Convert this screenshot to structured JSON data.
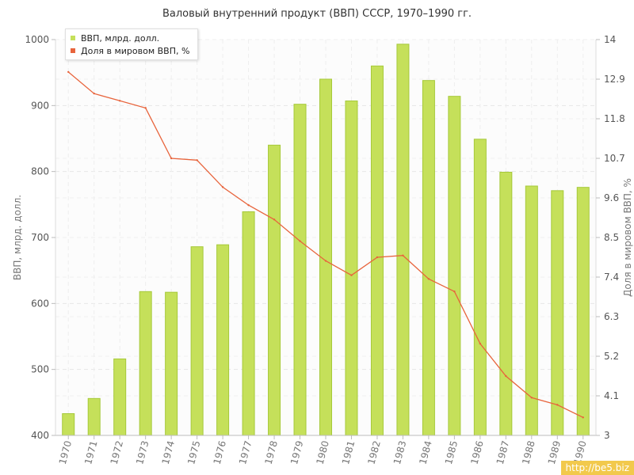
{
  "chart_data": {
    "type": "bar",
    "title": "Валовый внутренний продукт (ВВП) СССР, 1970–1990 гг.",
    "categories": [
      "1970",
      "1971",
      "1972",
      "1973",
      "1974",
      "1975",
      "1976",
      "1977",
      "1978",
      "1979",
      "1980",
      "1981",
      "1982",
      "1983",
      "1984",
      "1985",
      "1986",
      "1987",
      "1988",
      "1989",
      "1990"
    ],
    "series": [
      {
        "name": "ВВП, млрд. долл.",
        "type": "bar",
        "axis": "left",
        "color": "#c5e05a",
        "values": [
          433,
          456,
          516,
          618,
          617,
          686,
          689,
          739,
          840,
          902,
          940,
          907,
          960,
          993,
          938,
          914,
          849,
          799,
          778,
          771,
          776
        ]
      },
      {
        "name": "Доля в мировом ВВП, %",
        "type": "line",
        "axis": "right",
        "color": "#e8643c",
        "values": [
          13.1,
          12.5,
          12.3,
          12.1,
          10.7,
          10.65,
          9.9,
          9.4,
          9.0,
          8.4,
          7.85,
          7.45,
          7.95,
          8.0,
          7.35,
          7.0,
          5.55,
          4.65,
          4.05,
          3.85,
          3.5
        ]
      }
    ],
    "ylabel": "ВВП, млрд. долл.",
    "ylim": [
      400,
      1000
    ],
    "yticks": [
      "400",
      "500",
      "600",
      "700",
      "800",
      "900",
      "1000"
    ],
    "y2label": "Доля в мировом ВВП, %",
    "y2lim": [
      3,
      14
    ],
    "y2ticks": [
      "3",
      "4.1",
      "5.2",
      "6.3",
      "7.4",
      "8.5",
      "9.6",
      "10.7",
      "11.8",
      "12.9",
      "14"
    ],
    "grid": true,
    "legend_position": "top-left"
  },
  "watermark": "http://be5.biz"
}
